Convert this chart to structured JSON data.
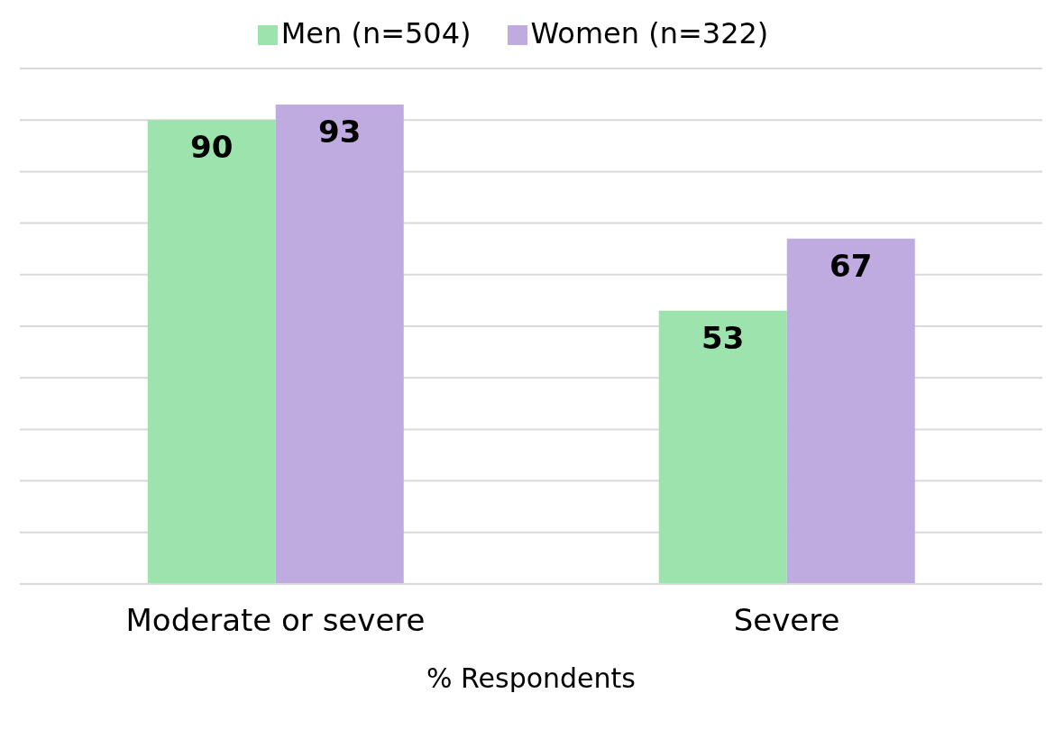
{
  "chart_data": {
    "type": "bar",
    "xlabel": "% Respondents",
    "categories": [
      "Moderate or severe",
      "Severe"
    ],
    "series": [
      {
        "name": "Men (n=504)",
        "color": "#9de3ad",
        "values": [
          90,
          53
        ]
      },
      {
        "name": "Women (n=322)",
        "color": "#bfabdf",
        "values": [
          93,
          67
        ]
      }
    ],
    "ylim": [
      0,
      100
    ],
    "yticks": [
      {
        "value": 0,
        "label": null
      },
      {
        "value": 10,
        "label": null
      },
      {
        "value": 20,
        "label": null
      },
      {
        "value": 30,
        "label": null
      },
      {
        "value": 40,
        "label": null
      },
      {
        "value": 50,
        "label": null
      },
      {
        "value": 60,
        "label": null
      },
      {
        "value": 70,
        "label": null
      },
      {
        "value": 80,
        "label": null
      },
      {
        "value": 90,
        "label": null
      },
      {
        "value": 100,
        "label": null
      }
    ],
    "grid": "y",
    "legend": "top",
    "data_labels": true
  }
}
